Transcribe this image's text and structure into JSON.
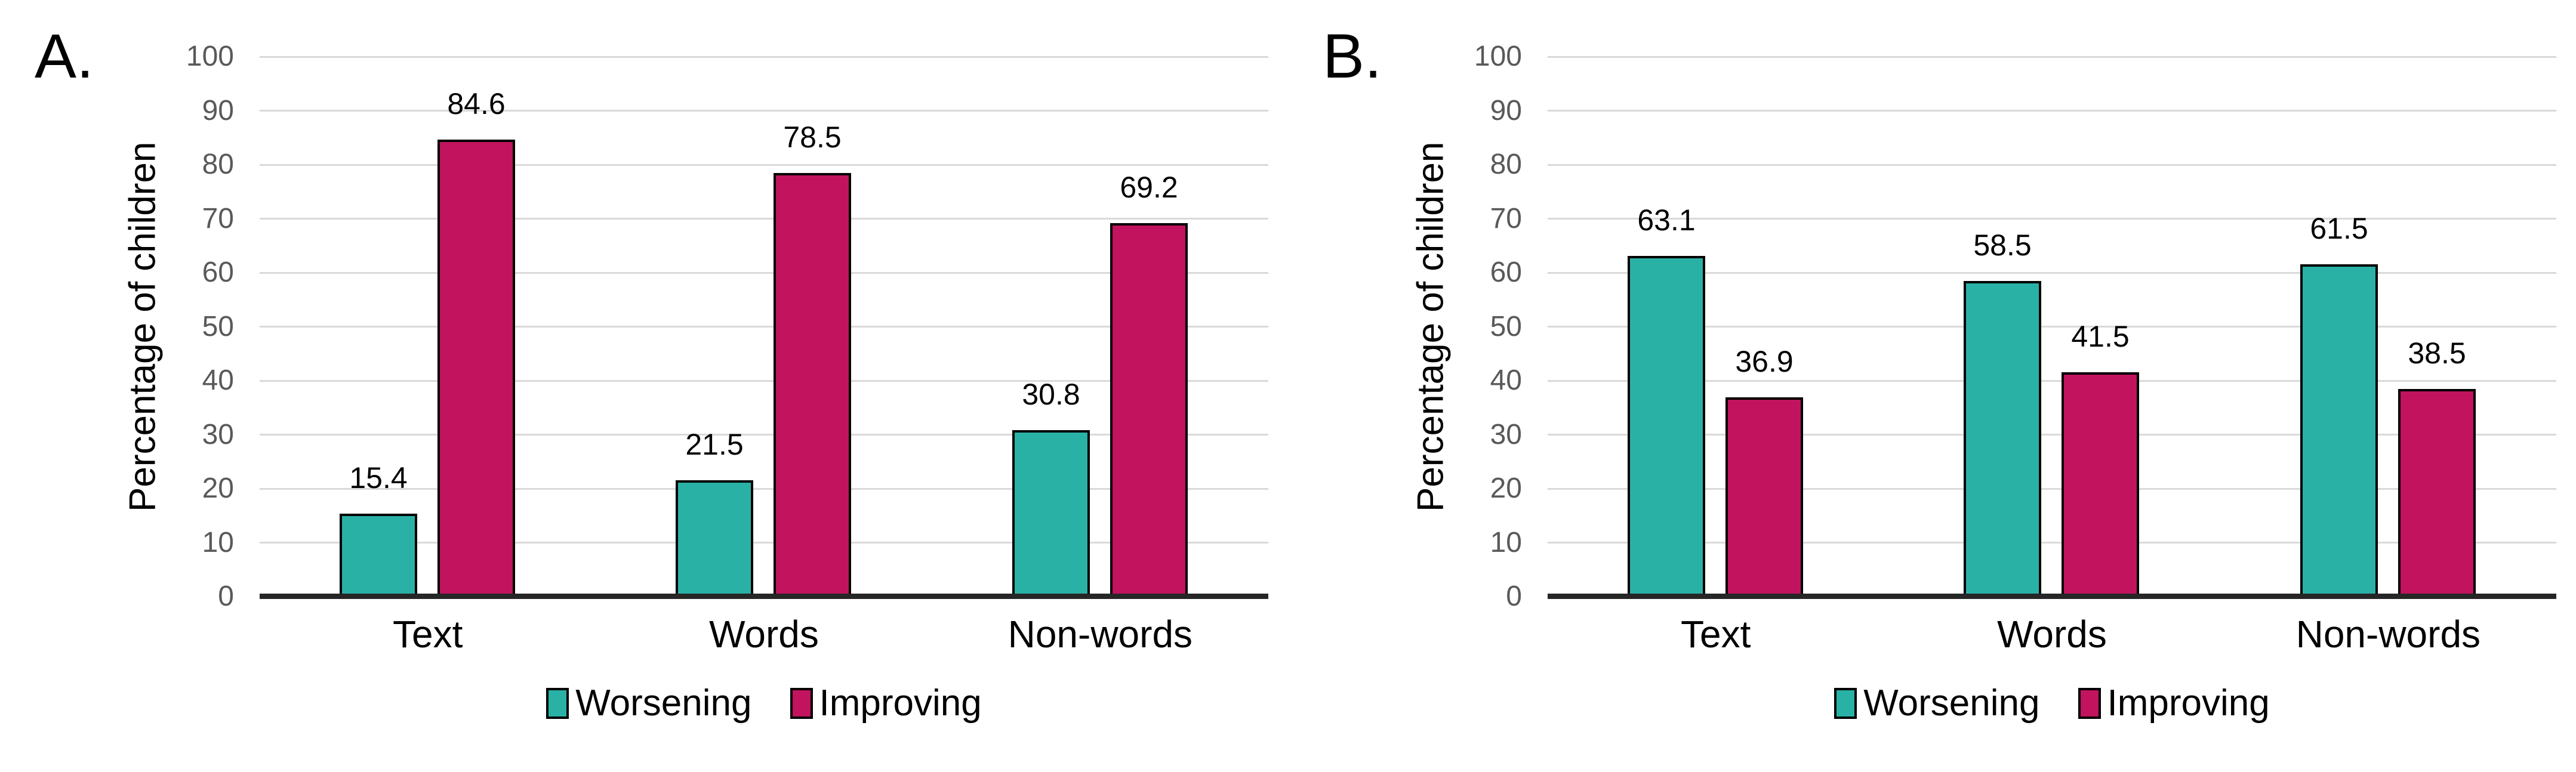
{
  "figure_description": "Two-panel clustered bar chart comparing percentage of children worsening vs improving on Text, Words and Non-words measures",
  "style": {
    "worsening_color": "#2AB1A6",
    "improving_color": "#C1135E",
    "bar_border_color": "#000000",
    "gridline_color": "#D9D9D9",
    "axis_line_color": "#262626",
    "tick_label_color": "#595959",
    "text_color": "#000000",
    "background_color": "#FFFFFF"
  },
  "chart_data": [
    {
      "type": "bar",
      "panel_label": "A.",
      "title": "",
      "xlabel": "",
      "ylabel": "Percentage of children",
      "categories": [
        "Text",
        "Words",
        "Non-words"
      ],
      "series": [
        {
          "name": "Worsening",
          "color": "#2AB1A6",
          "values": [
            15.4,
            21.5,
            30.8
          ]
        },
        {
          "name": "Improving",
          "color": "#C1135E",
          "values": [
            84.6,
            78.5,
            69.2
          ]
        }
      ],
      "ylim": [
        0,
        100
      ],
      "y_ticks": [
        0,
        10,
        20,
        30,
        40,
        50,
        60,
        70,
        80,
        90,
        100
      ],
      "grid": true,
      "legend_position": "bottom",
      "bar_value_labels": true
    },
    {
      "type": "bar",
      "panel_label": "B.",
      "title": "",
      "xlabel": "",
      "ylabel": "Percentage of children",
      "categories": [
        "Text",
        "Words",
        "Non-words"
      ],
      "series": [
        {
          "name": "Worsening",
          "color": "#2AB1A6",
          "values": [
            63.1,
            58.5,
            61.5
          ]
        },
        {
          "name": "Improving",
          "color": "#C1135E",
          "values": [
            36.9,
            41.5,
            38.5
          ]
        }
      ],
      "ylim": [
        0,
        100
      ],
      "y_ticks": [
        0,
        10,
        20,
        30,
        40,
        50,
        60,
        70,
        80,
        90,
        100
      ],
      "grid": true,
      "legend_position": "bottom",
      "bar_value_labels": true
    }
  ]
}
